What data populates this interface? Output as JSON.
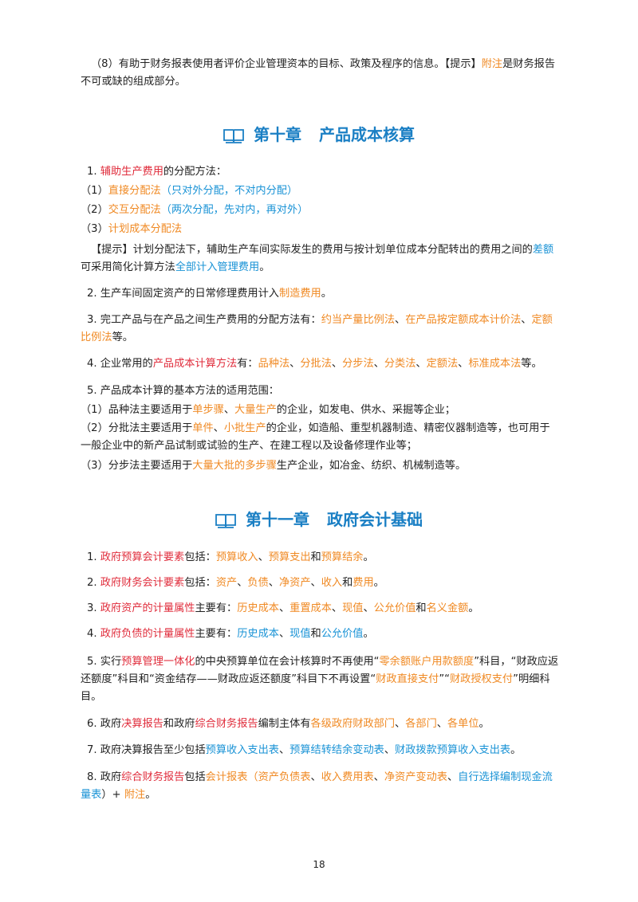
{
  "intro": {
    "s1": "（8）有助于财务报表使用者评价企业管理资本的目标、政策及程序的信息。【提示】",
    "s2": "附注",
    "s3": "是财务报告不可或缺的组成部分。"
  },
  "chapter10": {
    "num": "第十章",
    "title": "产品成本核算",
    "items": [
      {
        "t1": "1. ",
        "t2": "辅助生产费用",
        "t3": "的分配方法："
      },
      {
        "t1": "（1）",
        "t2": "直接分配法",
        "t3": "（只对外分配，不对内分配）"
      },
      {
        "t1": "（2）",
        "t2": "交互分配法",
        "t3": "（两次分配，先对内，再对外）"
      },
      {
        "t1": "（3）",
        "t2": "计划成本分配法"
      },
      {
        "t1": "【提示】计划分配法下，辅助生产车间实际发生的费用与按计划单位成本分配转出的费用之间的",
        "t2": "差额",
        "t3": "可采用简化计算方法",
        "t4": "全部计入管理费用",
        "t5": "。"
      },
      {
        "t1": "2. 生产车间固定资产的日常修理费用计入",
        "t2": "制造费用",
        "t3": "。"
      },
      {
        "t1": "3. 完工产品与在产品之间生产费用的分配方法有：",
        "t2": "约当产量比例法",
        "t3": "、",
        "t4": "在产品按定额成本计价法",
        "t5": "、",
        "t6": "定额比例法",
        "t7": "等。"
      },
      {
        "t1": "4. 企业常用的",
        "t2": "产品成本计算方法",
        "t3": "有：",
        "t4": "品种法",
        "t5": "、",
        "t6": "分批法",
        "t7": "、",
        "t8": "分步法",
        "t9": "、",
        "t10": "分类法",
        "t11": "、",
        "t12": "定额法",
        "t13": "、",
        "t14": "标准成本法",
        "t15": "等。"
      },
      {
        "t1": "5. 产品成本计算的基本方法的适用范围："
      },
      {
        "t1": "（1）品种法主要适用于",
        "t2": "单步骤",
        "t3": "、",
        "t4": "大量生产",
        "t5": "的企业，如发电、供水、采掘等企业；"
      },
      {
        "t1": "（2）分批法主要适用于",
        "t2": "单件",
        "t3": "、",
        "t4": "小批生产",
        "t5": "的企业，如造船、重型机器制造、精密仪器制造等，也可用于一般企业中的新产品试制或试验的生产、在建工程以及设备修理作业等；"
      },
      {
        "t1": "（3）分步法主要适用于",
        "t2": "大量大批的多步骤",
        "t3": "生产企业，如冶金、纺织、机械制造等。"
      }
    ]
  },
  "chapter11": {
    "num": "第十一章",
    "title": "政府会计基础",
    "items": [
      {
        "t1": "1. ",
        "t2": "政府预算会计要素",
        "t3": "包括：",
        "t4": "预算收入",
        "t5": "、",
        "t6": "预算支出",
        "t7": "和",
        "t8": "预算结余",
        "t9": "。"
      },
      {
        "t1": "2. ",
        "t2": "政府财务会计要素",
        "t3": "包括：",
        "t4": "资产",
        "t5": "、",
        "t6": "负债",
        "t7": "、",
        "t8": "净资产",
        "t9": "、",
        "t10": "收入",
        "t11": "和",
        "t12": "费用",
        "t13": "。"
      },
      {
        "t1": "3. ",
        "t2": "政府资产的计量属性",
        "t3": "主要有：",
        "t4": "历史成本",
        "t5": "、",
        "t6": "重置成本",
        "t7": "、",
        "t8": "现值",
        "t9": "、",
        "t10": "公允价值",
        "t11": "和",
        "t12": "名义金额",
        "t13": "。"
      },
      {
        "t1": "4. ",
        "t2": "政府负债的计量属性",
        "t3": "主要有：",
        "t4": "历史成本",
        "t5": "、",
        "t6": "现值",
        "t7": "和",
        "t8": "公允价值",
        "t9": "。"
      },
      {
        "t1": "5. 实行",
        "t2": "预算管理一体化",
        "t3": "的中央预算单位在会计核算时不再使用“",
        "t4": "零余额账户用款额度",
        "t5": "”科目，“财政应返还额度”科目和“资金结存——财政应返还额度”科目下不再设置“",
        "t6": "财政直接支付",
        "t7": "”“",
        "t8": "财政授权支付",
        "t9": "”明细科目。"
      },
      {
        "t1": "6. 政府",
        "t2": "决算报告",
        "t3": "和政府",
        "t4": "综合财务报告",
        "t5": "编制主体有",
        "t6": "各级政府财政部门",
        "t7": "、",
        "t8": "各部门",
        "t9": "、",
        "t10": "各单位",
        "t11": "。"
      },
      {
        "t1": "7. 政府决算报告至少包括",
        "t2": "预算收入支出表",
        "t3": "、",
        "t4": "预算结转结余变动表",
        "t5": "、",
        "t6": "财政拨款预算收入支出表",
        "t7": "。"
      },
      {
        "t1": "8. 政府",
        "t2": "综合财务报告",
        "t3": "包括",
        "t4": "会计报表",
        "t5": "（",
        "t6": "资产负债表",
        "t7": "、",
        "t8": "收入费用表",
        "t9": "、",
        "t10": "净资产变动表",
        "t11": "、",
        "t12": "自行选择编制现金流量表",
        "t13": "）+ ",
        "t14": "附注",
        "t15": "。"
      }
    ]
  },
  "page_number": "18",
  "colors": {
    "heading": "#1a7fc4",
    "red": "#e02d3c",
    "orange": "#f08a24",
    "blue": "#1a93d6",
    "text": "#222222"
  },
  "icons": {
    "chapter_icon": "open-book-icon"
  }
}
